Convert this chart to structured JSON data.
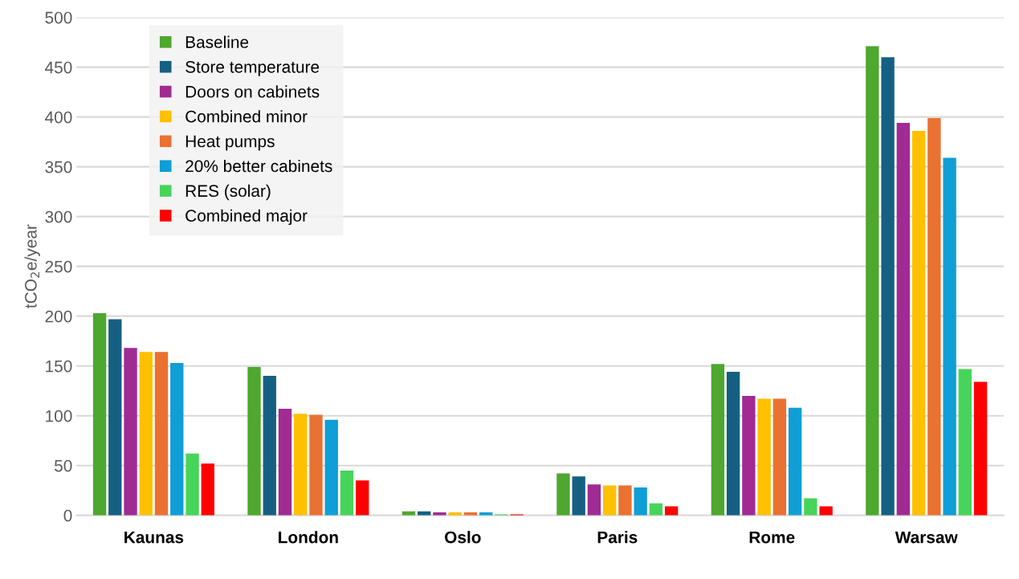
{
  "chart_data": {
    "type": "bar",
    "ylabel": "tCO$_{2}$e/year",
    "categories": [
      "Kaunas",
      "London",
      "Oslo",
      "Paris",
      "Rome",
      "Warsaw"
    ],
    "series": [
      {
        "name": "Baseline",
        "color": "#4ea72e",
        "values": [
          203,
          149,
          4,
          42,
          152,
          471
        ]
      },
      {
        "name": "Store temperature",
        "color": "#156082",
        "values": [
          197,
          140,
          4,
          39,
          144,
          460
        ]
      },
      {
        "name": "Doors on cabinets",
        "color": "#a02b93",
        "values": [
          168,
          107,
          3,
          31,
          120,
          394
        ]
      },
      {
        "name": "Combined minor",
        "color": "#ffc000",
        "values": [
          164,
          102,
          3,
          30,
          117,
          386
        ]
      },
      {
        "name": "Heat pumps",
        "color": "#e97132",
        "values": [
          164,
          101,
          3,
          30,
          117,
          399
        ]
      },
      {
        "name": "20% better cabinets",
        "color": "#0f9ed5",
        "values": [
          153,
          96,
          3,
          28,
          108,
          359
        ]
      },
      {
        "name": "RES (solar)",
        "color": "#47d45a",
        "values": [
          62,
          45,
          1,
          12,
          17,
          147
        ]
      },
      {
        "name": "Combined major",
        "color": "#ff0000",
        "values": [
          52,
          35,
          1,
          9,
          9,
          134
        ]
      }
    ],
    "ylim": [
      0,
      500
    ],
    "yticks": [
      0,
      50,
      100,
      150,
      200,
      250,
      300,
      350,
      400,
      450,
      500
    ],
    "grid": "y",
    "legend": "top left"
  }
}
